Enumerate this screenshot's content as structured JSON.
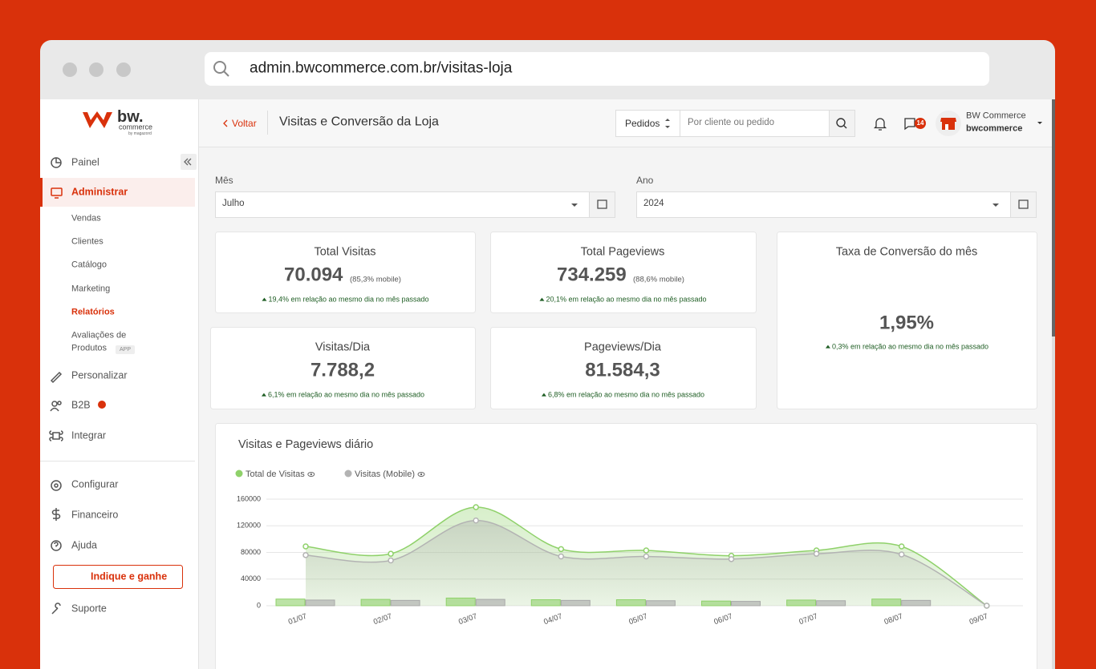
{
  "browser": {
    "url": "admin.bwcommerce.com.br/visitas-loja"
  },
  "logo": {
    "brand": "bw.",
    "sub": "commerce",
    "by": "by magazord"
  },
  "sidebar": {
    "menu": [
      "Painel",
      "Administrar",
      "Vendas",
      "Clientes",
      "Catálogo",
      "Marketing",
      "Relatórios",
      "Avaliações de",
      "Produtos",
      "Personalizar",
      "B2B",
      "Integrar",
      "Configurar",
      "Financeiro",
      "Ajuda",
      "Indique e ganhe",
      "Suporte"
    ],
    "app_badge": "APP"
  },
  "header": {
    "back": "Voltar",
    "title": "Visitas e Conversão da Loja",
    "search_scope": "Pedidos",
    "search_placeholder": "Por cliente ou pedido",
    "messages": "14",
    "user_name": "BW Commerce",
    "user_login": "bwcommerce"
  },
  "filters": {
    "month_label": "Mês",
    "month": "Julho",
    "year_label": "Ano",
    "year": "2024"
  },
  "cards": [
    {
      "title": "Total Visitas",
      "value": "70.094",
      "detail": "(85,3% mobile)",
      "change": "19,4% em relação ao mesmo dia no mês passado"
    },
    {
      "title": "Total Pageviews",
      "value": "734.259",
      "detail": "(88,6% mobile)",
      "change": "20,1% em relação ao mesmo dia no mês passado"
    },
    {
      "title": "Taxa de Conversão do mês",
      "value": "1,95%",
      "change": "0,3% em relação ao mesmo dia no mês passado"
    },
    {
      "title": "Visitas/Dia",
      "value": "7.788,2",
      "change": "6,1% em relação ao mesmo dia no mês passado"
    },
    {
      "title": "Pageviews/Dia",
      "value": "81.584,3",
      "change": "6,8% em relação ao mesmo dia no mês passado"
    }
  ],
  "chart_data": {
    "type": "area",
    "title": "Visitas e Pageviews diário",
    "categories": [
      "01/07",
      "02/07",
      "03/07",
      "04/07",
      "05/07",
      "06/07",
      "07/07",
      "08/07",
      "09/07"
    ],
    "series": [
      {
        "name": "Total de Visitas",
        "color": "#8fd16a",
        "values": [
          89000,
          78000,
          148000,
          85000,
          83000,
          75000,
          83000,
          89000,
          0
        ]
      },
      {
        "name": "Visitas (Mobile)",
        "color": "#b3b3b3",
        "values": [
          76000,
          68000,
          128000,
          74000,
          74000,
          70000,
          78000,
          77000,
          0
        ]
      }
    ],
    "bars": [
      {
        "color": "#8fd16a",
        "values": [
          10000,
          9500,
          11500,
          9000,
          9000,
          7000,
          8500,
          10000,
          null
        ]
      },
      {
        "color": "#a8a8a8",
        "values": [
          8500,
          8000,
          9500,
          8000,
          7500,
          6500,
          7500,
          8000,
          null
        ]
      }
    ],
    "ylim": [
      0,
      160000
    ],
    "yticks": [
      0,
      40000,
      80000,
      120000,
      160000
    ],
    "grid": true
  }
}
